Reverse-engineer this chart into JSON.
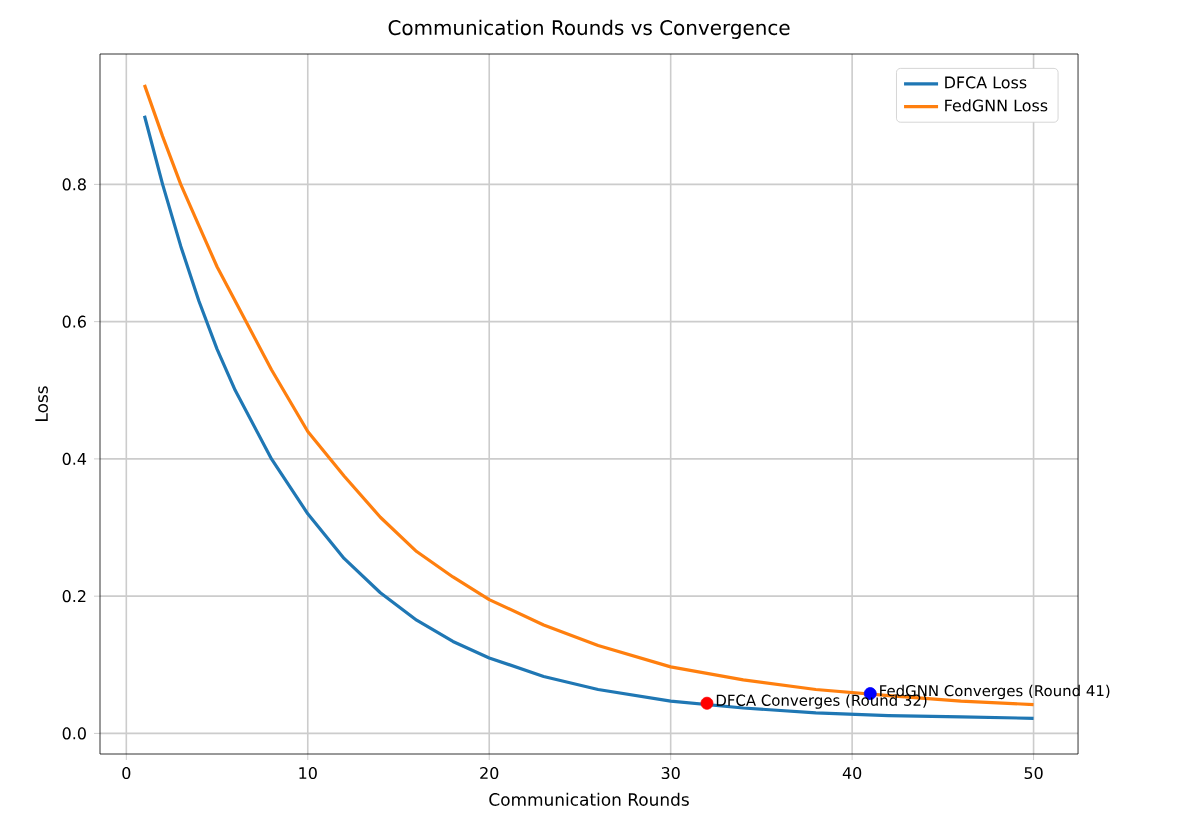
{
  "chart_data": {
    "type": "line",
    "title": "Communication Rounds vs Convergence",
    "xlabel": "Communication Rounds",
    "ylabel": "Loss",
    "x": [
      1,
      2,
      3,
      4,
      5,
      6,
      8,
      10,
      12,
      14,
      16,
      18,
      20,
      23,
      26,
      30,
      34,
      38,
      42,
      46,
      50
    ],
    "series": [
      {
        "name": "DFCA Loss",
        "color": "#1f77b4",
        "values": [
          0.9,
          0.8,
          0.71,
          0.63,
          0.56,
          0.5,
          0.4,
          0.32,
          0.255,
          0.205,
          0.165,
          0.134,
          0.11,
          0.083,
          0.064,
          0.047,
          0.037,
          0.03,
          0.026,
          0.024,
          0.022
        ]
      },
      {
        "name": "FedGNN Loss",
        "color": "#ff7f0e",
        "values": [
          0.945,
          0.87,
          0.8,
          0.74,
          0.68,
          0.63,
          0.53,
          0.44,
          0.375,
          0.315,
          0.265,
          0.228,
          0.195,
          0.158,
          0.128,
          0.097,
          0.078,
          0.064,
          0.055,
          0.047,
          0.042
        ]
      },
      {
        "type": "scatter",
        "color": "#ff0000",
        "x": [
          32
        ],
        "values": [
          0.044
        ]
      },
      {
        "type": "scatter",
        "color": "#0000ff",
        "x": [
          41
        ],
        "values": [
          0.058
        ]
      }
    ],
    "annotations": [
      {
        "text": "DFCA Converges (Round 32)",
        "x": 32,
        "y": 0.044
      },
      {
        "text": "FedGNN Converges (Round 41)",
        "x": 41,
        "y": 0.058
      }
    ],
    "xlim": [
      -1.45,
      52.45
    ],
    "ylim": [
      -0.03,
      0.99
    ],
    "xticks": [
      0,
      10,
      20,
      30,
      40,
      50
    ],
    "yticks": [
      {
        "value": 0,
        "label": "0.0"
      },
      {
        "value": 0.2,
        "label": "0.2"
      },
      {
        "value": 0.4,
        "label": "0.4"
      },
      {
        "value": 0.6,
        "label": "0.6"
      },
      {
        "value": 0.8,
        "label": "0.8"
      }
    ],
    "grid": true,
    "legend": "top right"
  }
}
